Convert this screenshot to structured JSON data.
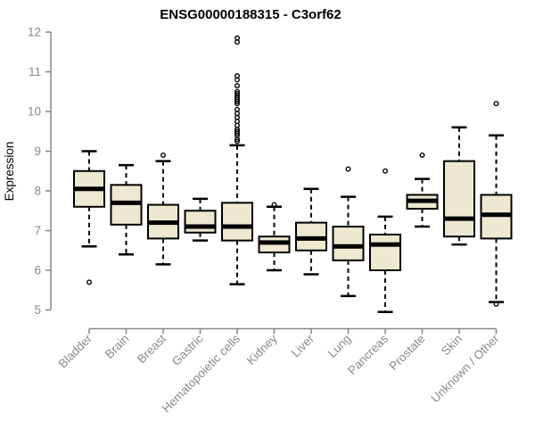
{
  "chart_data": {
    "type": "boxplot",
    "title": "ENSG00000188315 - C3orf62",
    "ylabel": "Expression",
    "xlabel": "",
    "ylim": [
      5,
      12
    ],
    "yticks": [
      5,
      6,
      7,
      8,
      9,
      10,
      11,
      12
    ],
    "grid": false,
    "legend": "none",
    "colors": {
      "box_fill": "#ede8d0",
      "box_stroke": "#000000",
      "axis_line": "#878787",
      "tick_label": "#8a8a8a",
      "title_color": "#000000",
      "background": "#ffffff"
    },
    "categories": [
      "Bladder",
      "Brain",
      "Breast",
      "Gastric",
      "Hematopoietic cells",
      "Kidney",
      "Liver",
      "Lung",
      "Pancreas",
      "Prostate",
      "Skin",
      "Unknown / Other"
    ],
    "series": [
      {
        "category": "Bladder",
        "low": 6.6,
        "q1": 7.6,
        "median": 8.05,
        "q3": 8.5,
        "high": 9.0,
        "outliers": [
          5.7
        ]
      },
      {
        "category": "Brain",
        "low": 6.4,
        "q1": 7.15,
        "median": 7.7,
        "q3": 8.15,
        "high": 8.65,
        "outliers": []
      },
      {
        "category": "Breast",
        "low": 6.15,
        "q1": 6.8,
        "median": 7.2,
        "q3": 7.65,
        "high": 8.75,
        "outliers": [
          8.9
        ]
      },
      {
        "category": "Gastric",
        "low": 6.75,
        "q1": 6.95,
        "median": 7.1,
        "q3": 7.5,
        "high": 7.8,
        "outliers": []
      },
      {
        "category": "Hematopoietic cells",
        "low": 5.65,
        "q1": 6.75,
        "median": 7.1,
        "q3": 7.7,
        "high": 9.15,
        "outliers": [
          9.25,
          9.3,
          9.4,
          9.45,
          9.5,
          9.55,
          9.65,
          9.75,
          9.85,
          9.95,
          10.05,
          10.2,
          10.25,
          10.3,
          10.35,
          10.4,
          10.45,
          10.5,
          10.65,
          10.8,
          10.9,
          11.75,
          11.85
        ]
      },
      {
        "category": "Kidney",
        "low": 6.0,
        "q1": 6.45,
        "median": 6.7,
        "q3": 6.85,
        "high": 7.6,
        "outliers": [
          7.65
        ]
      },
      {
        "category": "Liver",
        "low": 5.9,
        "q1": 6.5,
        "median": 6.8,
        "q3": 7.2,
        "high": 8.05,
        "outliers": []
      },
      {
        "category": "Lung",
        "low": 5.35,
        "q1": 6.25,
        "median": 6.6,
        "q3": 7.1,
        "high": 7.85,
        "outliers": [
          8.55
        ]
      },
      {
        "category": "Pancreas",
        "low": 4.95,
        "q1": 6.0,
        "median": 6.65,
        "q3": 6.9,
        "high": 7.35,
        "outliers": [
          8.5
        ]
      },
      {
        "category": "Prostate",
        "low": 7.1,
        "q1": 7.55,
        "median": 7.75,
        "q3": 7.9,
        "high": 8.3,
        "outliers": [
          8.9
        ]
      },
      {
        "category": "Skin",
        "low": 6.65,
        "q1": 6.85,
        "median": 7.3,
        "q3": 8.75,
        "high": 9.6,
        "outliers": []
      },
      {
        "category": "Unknown / Other",
        "low": 5.2,
        "q1": 6.8,
        "median": 7.4,
        "q3": 7.9,
        "high": 9.4,
        "outliers": [
          10.2,
          5.15
        ]
      }
    ]
  }
}
